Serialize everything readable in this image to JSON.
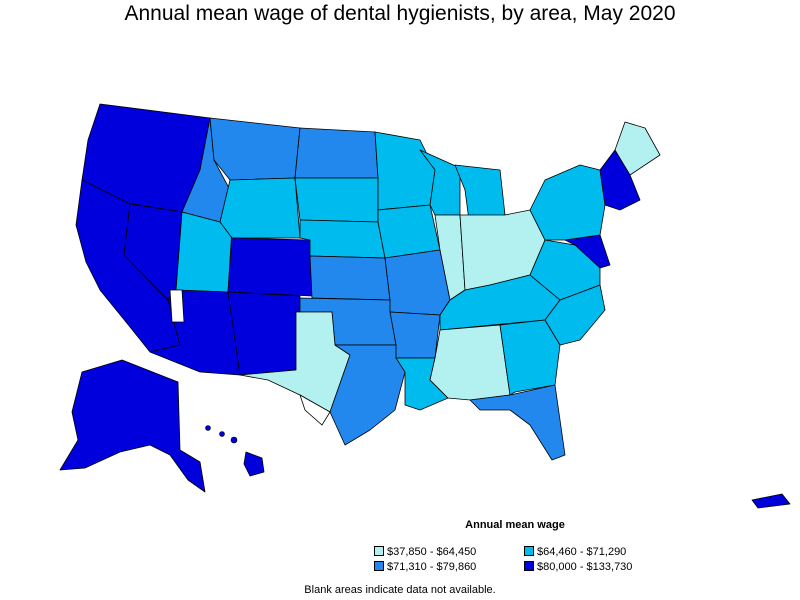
{
  "title": "Annual mean wage of dental hygienists, by area, May 2020",
  "legend": {
    "title": "Annual mean wage",
    "items": [
      {
        "label": "$37,850 - $64,450",
        "color": "#b3f0f0"
      },
      {
        "label": "$64,460 - $71,290",
        "color": "#00bbee"
      },
      {
        "label": "$71,310 - $79,860",
        "color": "#2288ee"
      },
      {
        "label": "$80,000 - $133,730",
        "color": "#0000dd"
      }
    ]
  },
  "footnote": "Blank areas indicate data not available.",
  "regions": [
    {
      "id": "pacific-northwest",
      "band": 3
    },
    {
      "id": "california",
      "band": 3
    },
    {
      "id": "nevada",
      "band": 3
    },
    {
      "id": "arizona",
      "band": 3
    },
    {
      "id": "new-mexico",
      "band": 3
    },
    {
      "id": "colorado",
      "band": 3
    },
    {
      "id": "alaska",
      "band": 3
    },
    {
      "id": "hawaii",
      "band": 3
    },
    {
      "id": "idaho",
      "band": 2
    },
    {
      "id": "montana",
      "band": 2
    },
    {
      "id": "utah",
      "band": 1
    },
    {
      "id": "wyoming",
      "band": 1
    },
    {
      "id": "north-dakota",
      "band": 2
    },
    {
      "id": "south-dakota",
      "band": 1
    },
    {
      "id": "nebraska",
      "band": 1
    },
    {
      "id": "kansas",
      "band": 2
    },
    {
      "id": "oklahoma",
      "band": 2
    },
    {
      "id": "west-texas",
      "band": 0
    },
    {
      "id": "east-texas",
      "band": 2
    },
    {
      "id": "minnesota",
      "band": 1
    },
    {
      "id": "iowa",
      "band": 1
    },
    {
      "id": "missouri",
      "band": 2
    },
    {
      "id": "arkansas",
      "band": 2
    },
    {
      "id": "louisiana",
      "band": 1
    },
    {
      "id": "wisconsin",
      "band": 1
    },
    {
      "id": "illinois",
      "band": 0
    },
    {
      "id": "michigan",
      "band": 1
    },
    {
      "id": "indiana-ohio",
      "band": 0
    },
    {
      "id": "kentucky-tennessee",
      "band": 1
    },
    {
      "id": "mississippi-alabama",
      "band": 0
    },
    {
      "id": "georgia",
      "band": 1
    },
    {
      "id": "florida",
      "band": 2
    },
    {
      "id": "carolinas",
      "band": 1
    },
    {
      "id": "virginia",
      "band": 1
    },
    {
      "id": "mid-atlantic",
      "band": 3
    },
    {
      "id": "pennsylvania-ny",
      "band": 1
    },
    {
      "id": "new-england",
      "band": 3
    },
    {
      "id": "maine",
      "band": 0
    },
    {
      "id": "puerto-rico",
      "band": 3
    }
  ]
}
